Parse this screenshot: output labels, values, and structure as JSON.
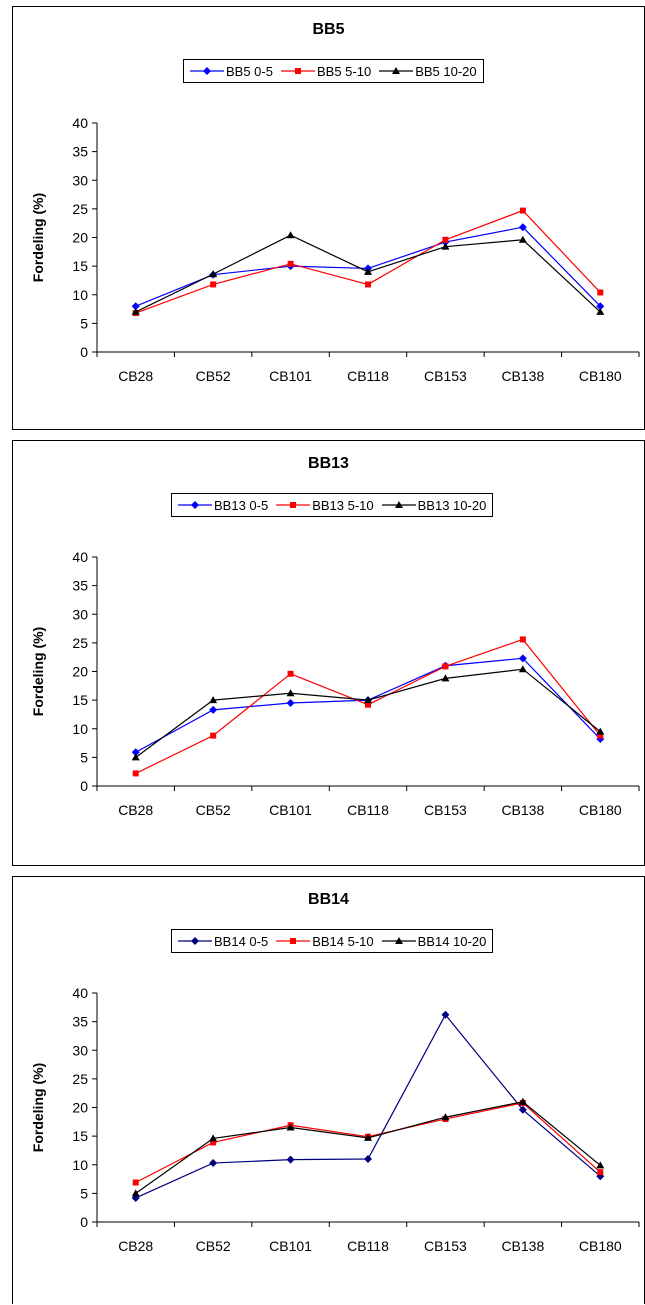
{
  "chart_data": [
    {
      "type": "line",
      "title": "BB5",
      "ylabel": "Fordeling (%)",
      "xlabel": "",
      "ylim": [
        0,
        40
      ],
      "yticks": [
        0,
        5,
        10,
        15,
        20,
        25,
        30,
        35,
        40
      ],
      "categories": [
        "CB28",
        "CB52",
        "CB101",
        "CB118",
        "CB153",
        "CB138",
        "CB180"
      ],
      "legend_position": "top",
      "series": [
        {
          "name": "BB5 0-5",
          "color": "#0000ff",
          "marker": "diamond",
          "values": [
            8.0,
            13.5,
            15.0,
            14.6,
            19.2,
            21.8,
            8.0
          ]
        },
        {
          "name": "BB5 5-10",
          "color": "#ff0000",
          "marker": "square",
          "values": [
            6.8,
            11.8,
            15.4,
            11.8,
            19.6,
            24.7,
            10.4
          ]
        },
        {
          "name": "BB5 10-20",
          "color": "#000000",
          "marker": "triangle",
          "values": [
            7.0,
            13.6,
            20.4,
            14.0,
            18.4,
            19.6,
            7.0
          ]
        }
      ]
    },
    {
      "type": "line",
      "title": "BB13",
      "ylabel": "Fordeling (%)",
      "xlabel": "",
      "ylim": [
        0,
        40
      ],
      "yticks": [
        0,
        5,
        10,
        15,
        20,
        25,
        30,
        35,
        40
      ],
      "categories": [
        "CB28",
        "CB52",
        "CB101",
        "CB118",
        "CB153",
        "CB138",
        "CB180"
      ],
      "legend_position": "top",
      "series": [
        {
          "name": "BB13 0-5",
          "color": "#0000ff",
          "marker": "diamond",
          "values": [
            5.9,
            13.3,
            14.5,
            15.0,
            21.0,
            22.3,
            8.2
          ]
        },
        {
          "name": "BB13 5-10",
          "color": "#ff0000",
          "marker": "square",
          "values": [
            2.2,
            8.8,
            19.6,
            14.2,
            20.9,
            25.6,
            8.8
          ]
        },
        {
          "name": "BB13 10-20",
          "color": "#000000",
          "marker": "triangle",
          "values": [
            5.0,
            15.0,
            16.2,
            15.0,
            18.8,
            20.4,
            9.5
          ]
        }
      ]
    },
    {
      "type": "line",
      "title": "BB14",
      "ylabel": "Fordeling (%)",
      "xlabel": "",
      "ylim": [
        0,
        40
      ],
      "yticks": [
        0,
        5,
        10,
        15,
        20,
        25,
        30,
        35,
        40
      ],
      "categories": [
        "CB28",
        "CB52",
        "CB101",
        "CB118",
        "CB153",
        "CB138",
        "CB180"
      ],
      "legend_position": "top",
      "series": [
        {
          "name": "BB14 0-5",
          "color": "#000080",
          "marker": "diamond",
          "values": [
            4.2,
            10.3,
            10.9,
            11.0,
            36.2,
            19.6,
            8.0
          ]
        },
        {
          "name": "BB14 5-10",
          "color": "#ff0000",
          "marker": "square",
          "values": [
            6.9,
            13.9,
            16.9,
            14.9,
            18.0,
            20.8,
            8.7
          ]
        },
        {
          "name": "BB14 10-20",
          "color": "#000000",
          "marker": "triangle",
          "values": [
            5.0,
            14.6,
            16.5,
            14.7,
            18.3,
            21.0,
            9.9
          ]
        }
      ]
    }
  ]
}
